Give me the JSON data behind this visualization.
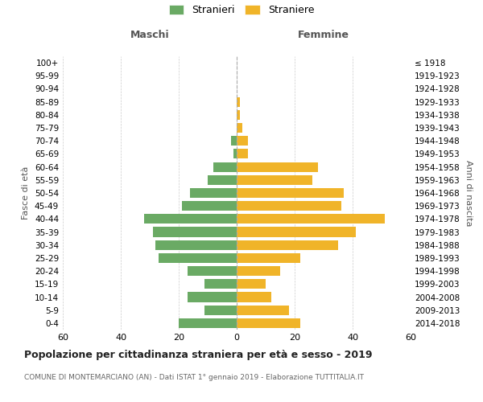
{
  "age_groups": [
    "0-4",
    "5-9",
    "10-14",
    "15-19",
    "20-24",
    "25-29",
    "30-34",
    "35-39",
    "40-44",
    "45-49",
    "50-54",
    "55-59",
    "60-64",
    "65-69",
    "70-74",
    "75-79",
    "80-84",
    "85-89",
    "90-94",
    "95-99",
    "100+"
  ],
  "birth_years": [
    "2014-2018",
    "2009-2013",
    "2004-2008",
    "1999-2003",
    "1994-1998",
    "1989-1993",
    "1984-1988",
    "1979-1983",
    "1974-1978",
    "1969-1973",
    "1964-1968",
    "1959-1963",
    "1954-1958",
    "1949-1953",
    "1944-1948",
    "1939-1943",
    "1934-1938",
    "1929-1933",
    "1924-1928",
    "1919-1923",
    "≤ 1918"
  ],
  "males": [
    20,
    11,
    17,
    11,
    17,
    27,
    28,
    29,
    32,
    19,
    16,
    10,
    8,
    1,
    2,
    0,
    0,
    0,
    0,
    0,
    0
  ],
  "females": [
    22,
    18,
    12,
    10,
    15,
    22,
    35,
    41,
    51,
    36,
    37,
    26,
    28,
    4,
    4,
    2,
    1,
    1,
    0,
    0,
    0
  ],
  "color_males": "#6aaa64",
  "color_females": "#f0b429",
  "title": "Popolazione per cittadinanza straniera per età e sesso - 2019",
  "subtitle": "COMUNE DI MONTEMARCIANO (AN) - Dati ISTAT 1° gennaio 2019 - Elaborazione TUTTITALIA.IT",
  "xlabel_left": "Maschi",
  "xlabel_right": "Femmine",
  "ylabel_left": "Fasce di età",
  "ylabel_right": "Anni di nascita",
  "legend_males": "Stranieri",
  "legend_females": "Straniere",
  "xlim": 60,
  "background_color": "#ffffff",
  "grid_color": "#cccccc"
}
